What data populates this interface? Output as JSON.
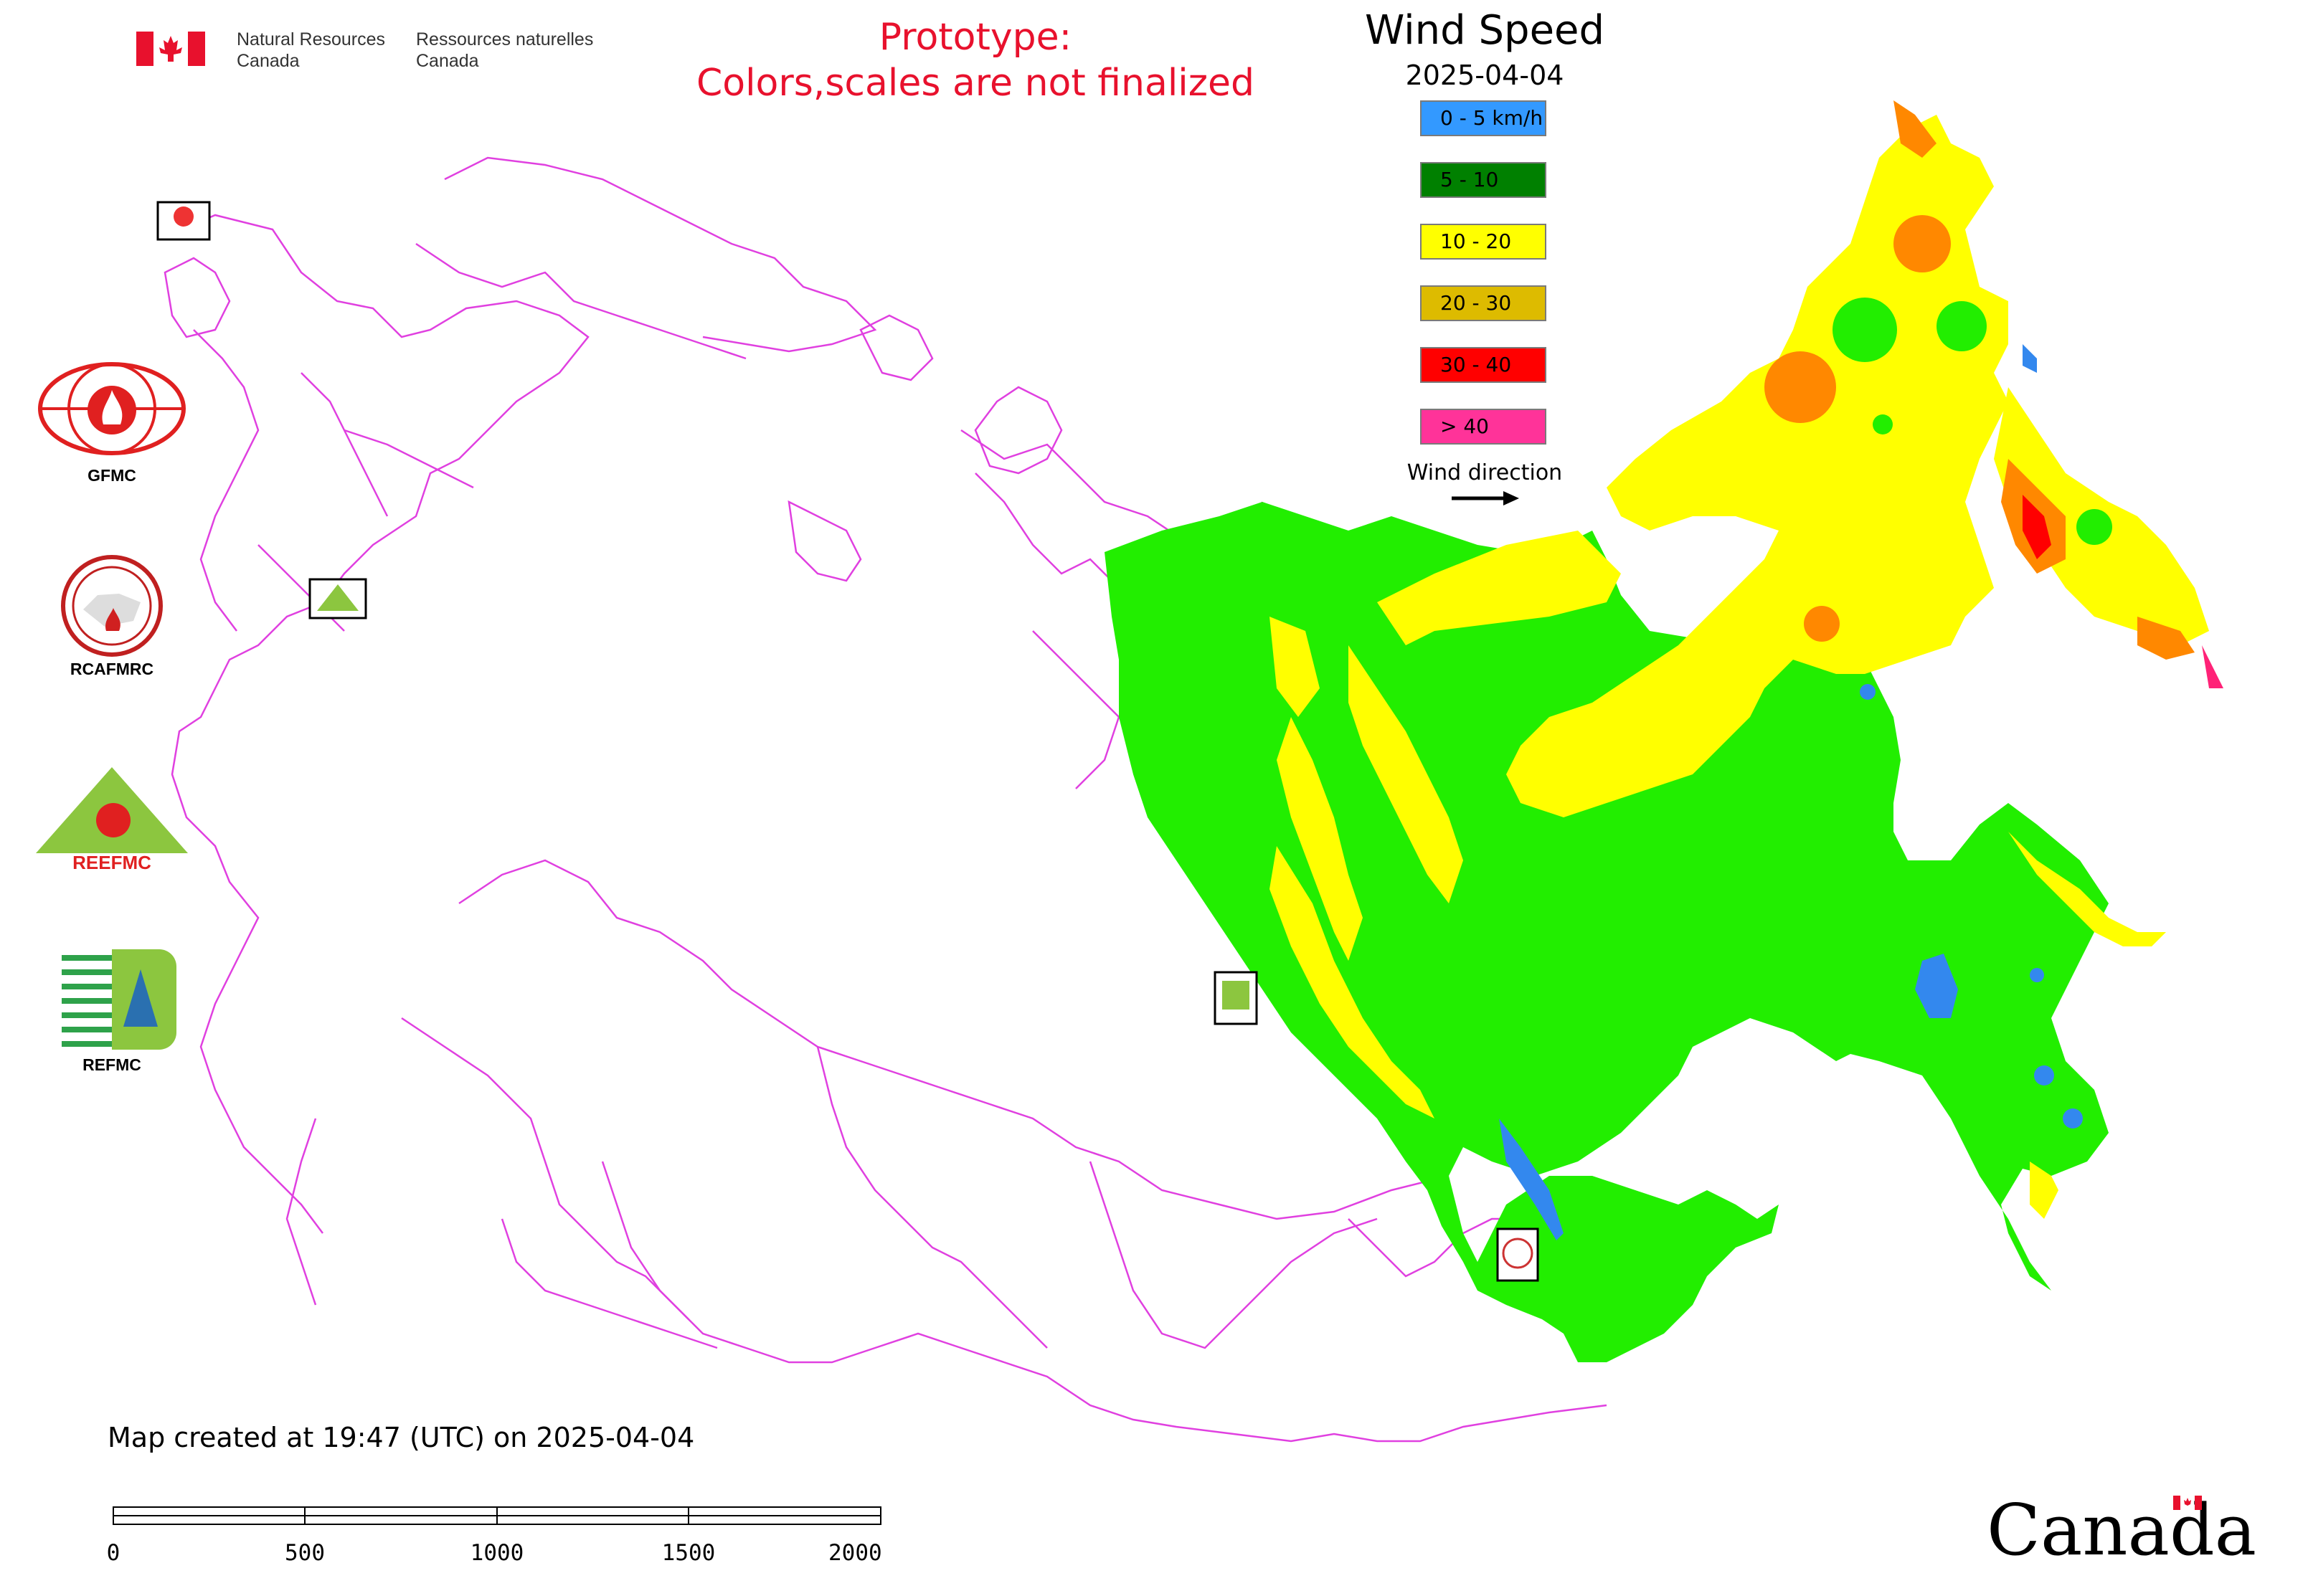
{
  "header": {
    "org_en_line1": "Natural Resources",
    "org_en_line2": "Canada",
    "org_fr_line1": "Ressources naturelles",
    "org_fr_line2": "Canada",
    "prototype_line1": "Prototype:",
    "prototype_line2": "Colors,scales are not finalized"
  },
  "legend": {
    "title": "Wind Speed",
    "date": "2025-04-04",
    "items": [
      {
        "label": "0 - 5 km/h",
        "color": "#3399ff"
      },
      {
        "label": "5 - 10",
        "color": "#008000"
      },
      {
        "label": "10 - 20",
        "color": "#ffff00"
      },
      {
        "label": "20 - 30",
        "color": "#ddbb00"
      },
      {
        "label": "30 - 40",
        "color": "#ff0000"
      },
      {
        "label": "> 40",
        "color": "#ff3399"
      }
    ],
    "wind_direction_label": "Wind direction"
  },
  "logos": [
    {
      "caption": "GFMC",
      "icon": "gfmc-logo-icon"
    },
    {
      "caption": "RCAFMRC",
      "icon": "rcafmrc-logo-icon"
    },
    {
      "caption": "",
      "icon": "reefmc-logo-icon",
      "wordmark": "REEFMC"
    },
    {
      "caption": "REFMC",
      "icon": "refmc-logo-icon"
    }
  ],
  "map": {
    "boundary_color": "#e040e0",
    "fill_colors": {
      "green": "#22ee00",
      "yellow": "#ffff00",
      "orange": "#ff8800",
      "blue": "#3388ee",
      "red": "#ff0000",
      "magenta": "#ff2277"
    }
  },
  "footer": {
    "created_text": "Map created at 19:47 (UTC) on 2025-04-04",
    "scale_ticks": [
      "0",
      "500",
      "1000",
      "1500",
      "2000 km"
    ],
    "canada_wordmark": "Canada"
  }
}
